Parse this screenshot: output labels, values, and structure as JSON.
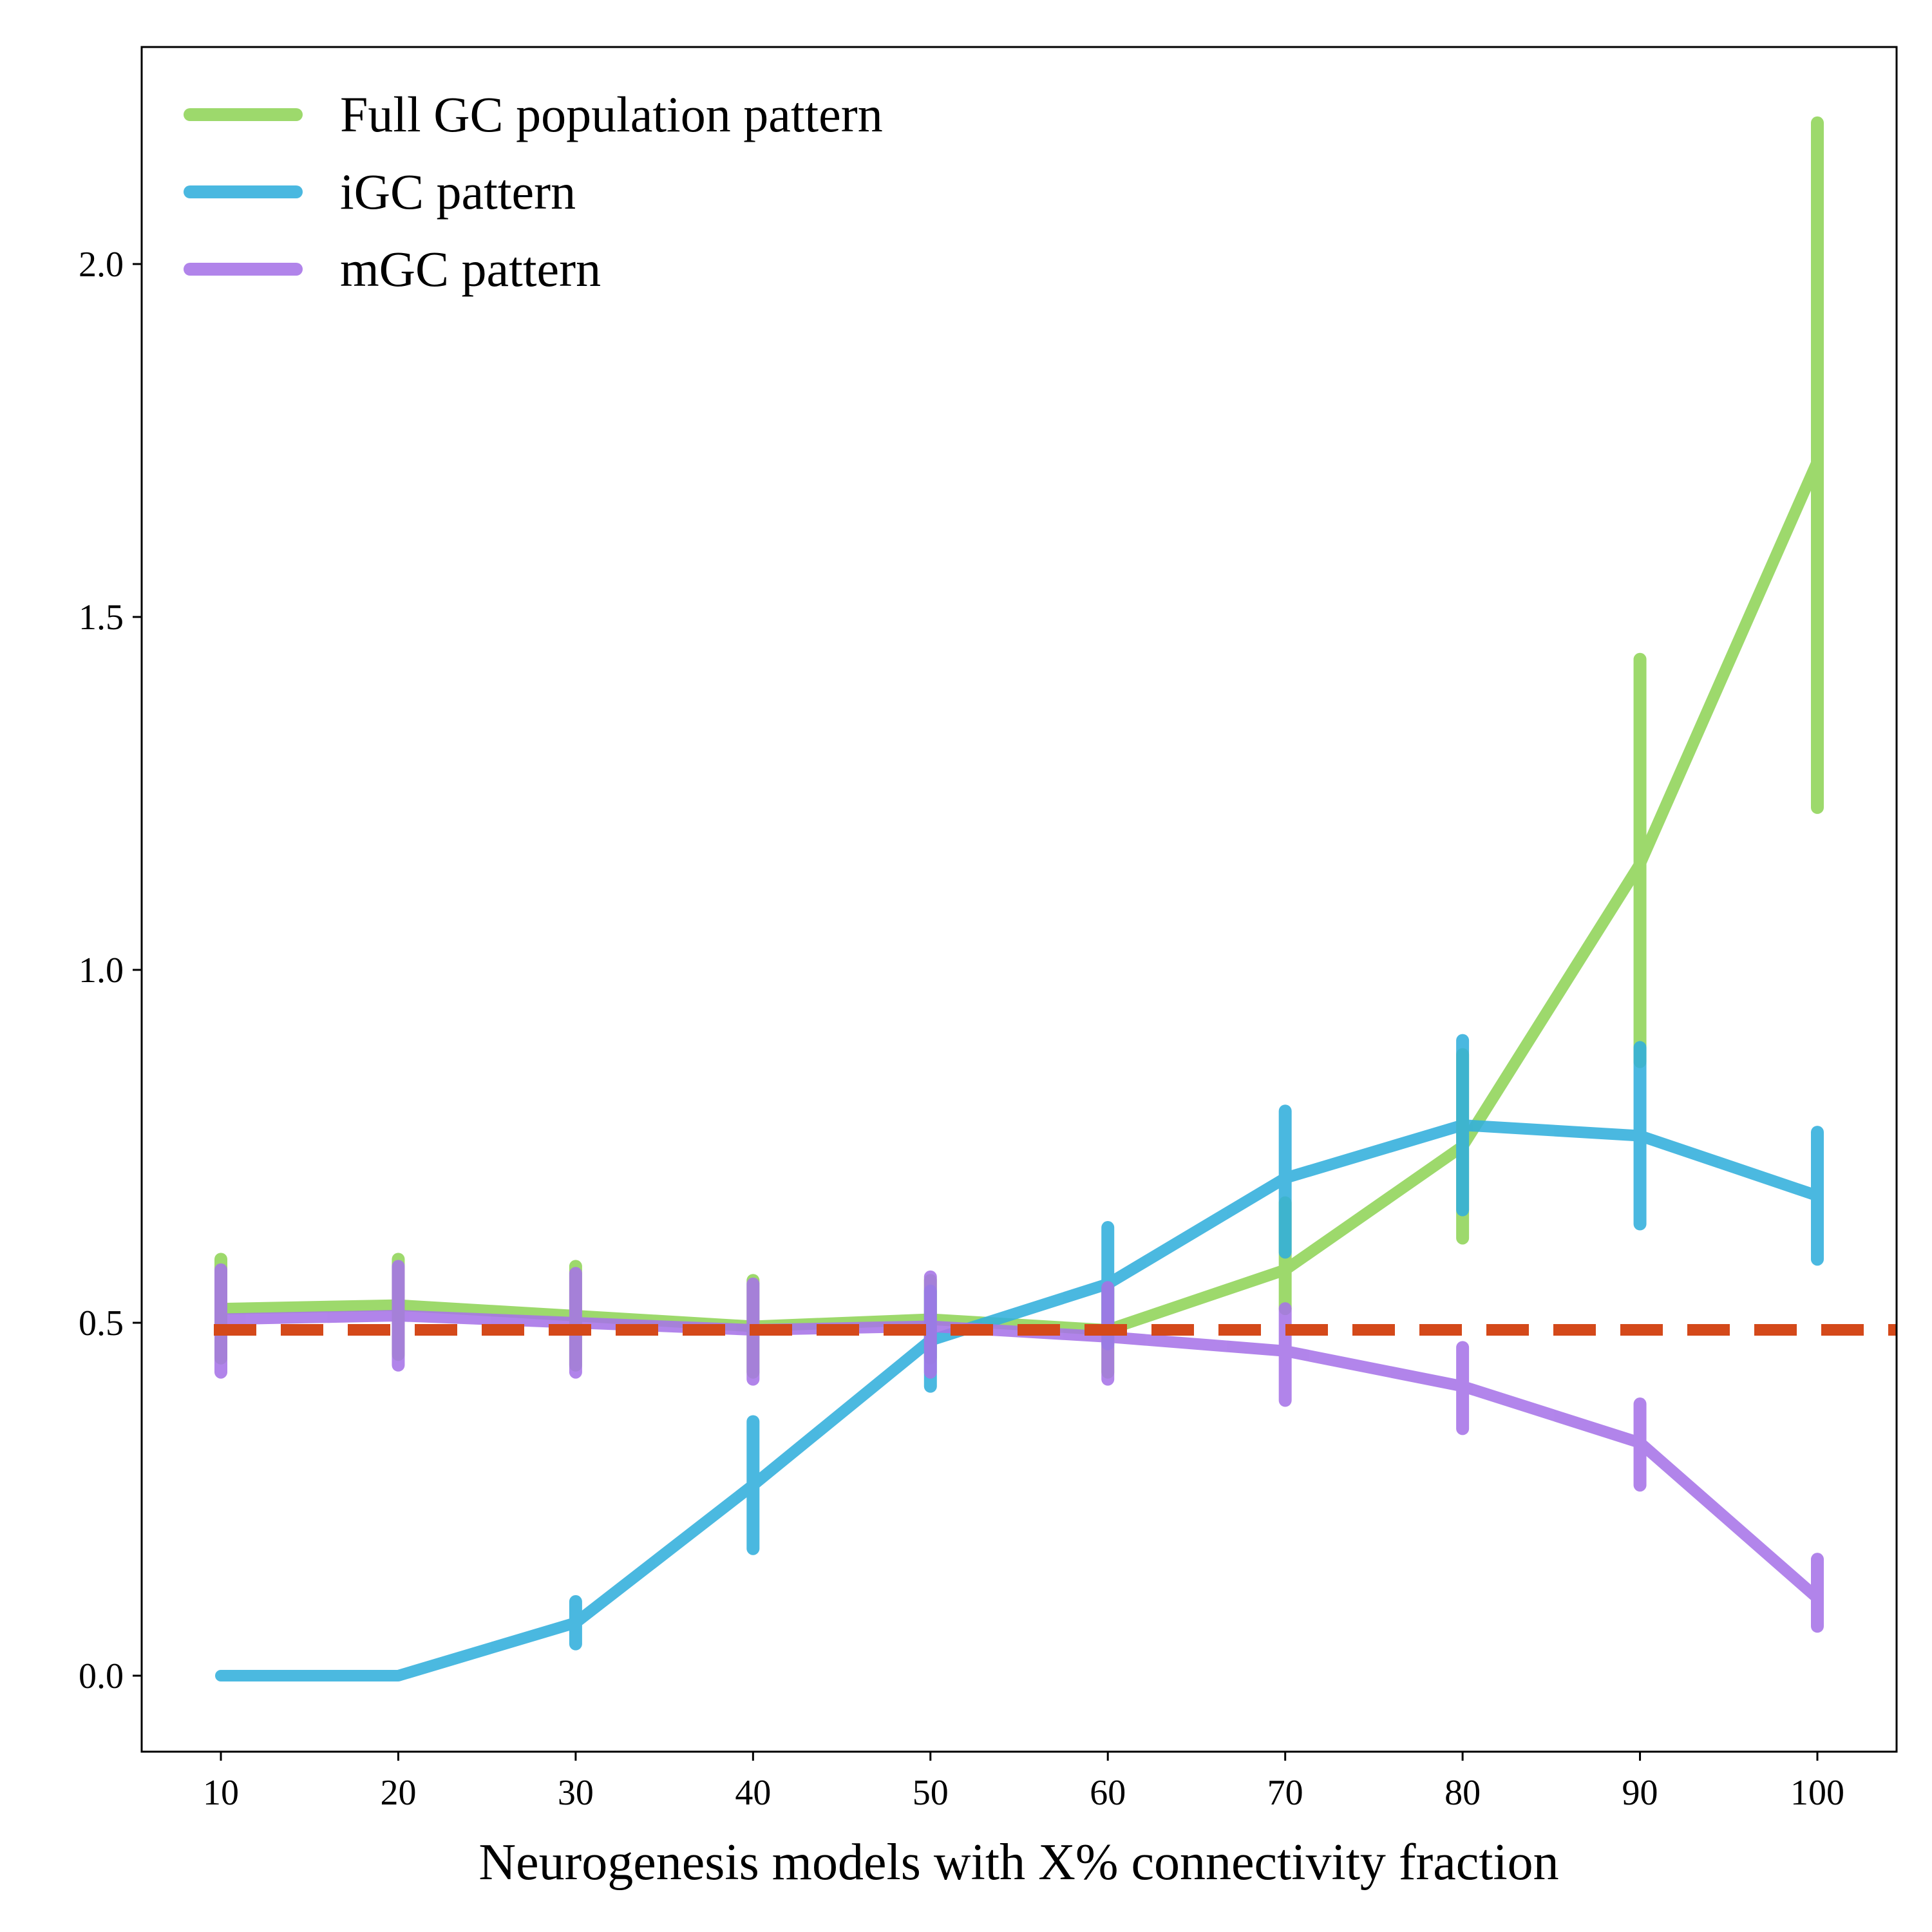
{
  "chart_data": {
    "type": "line",
    "title": "",
    "xlabel": "Neurogenesis models with X% connectivity fraction",
    "ylabel": "",
    "x": [
      10,
      20,
      30,
      40,
      50,
      60,
      70,
      80,
      90,
      100
    ],
    "xlim": [
      5.5,
      104.5
    ],
    "ylim": [
      -0.11,
      2.3
    ],
    "xticks": [
      "10",
      "20",
      "30",
      "40",
      "50",
      "60",
      "70",
      "80",
      "90",
      "100"
    ],
    "yticks": [
      "0.0",
      "0.5",
      "1.0",
      "1.5",
      "2.0"
    ],
    "grid": false,
    "legend_position": "top-left",
    "reference_line": {
      "y": 0.49,
      "style": "dashed",
      "color": "#d4491a"
    },
    "series": [
      {
        "name": "Full GC population pattern",
        "color": "#90d458",
        "values": [
          0.52,
          0.525,
          0.51,
          0.495,
          0.505,
          0.49,
          0.575,
          0.75,
          1.15,
          1.72
        ],
        "err_low": [
          0.45,
          0.455,
          0.44,
          0.43,
          0.45,
          0.43,
          0.52,
          0.62,
          0.87,
          1.23
        ],
        "err_high": [
          0.59,
          0.59,
          0.58,
          0.56,
          0.56,
          0.55,
          0.67,
          0.88,
          1.44,
          2.2
        ]
      },
      {
        "name": "iGC pattern",
        "color": "#32afdc",
        "values": [
          0.0,
          0.0,
          0.075,
          0.27,
          0.475,
          0.555,
          0.705,
          0.78,
          0.765,
          0.68
        ],
        "err_low": [
          0.0,
          0.0,
          0.045,
          0.18,
          0.41,
          0.47,
          0.6,
          0.66,
          0.64,
          0.59
        ],
        "err_high": [
          0.0,
          0.0,
          0.105,
          0.36,
          0.545,
          0.635,
          0.8,
          0.9,
          0.89,
          0.77
        ]
      },
      {
        "name": "mGC pattern",
        "color": "#a774e8",
        "values": [
          0.505,
          0.51,
          0.5,
          0.49,
          0.495,
          0.48,
          0.46,
          0.41,
          0.33,
          0.11
        ],
        "err_low": [
          0.43,
          0.44,
          0.43,
          0.42,
          0.43,
          0.42,
          0.39,
          0.35,
          0.27,
          0.07
        ],
        "err_high": [
          0.575,
          0.58,
          0.57,
          0.555,
          0.565,
          0.55,
          0.52,
          0.465,
          0.385,
          0.165
        ]
      }
    ]
  }
}
